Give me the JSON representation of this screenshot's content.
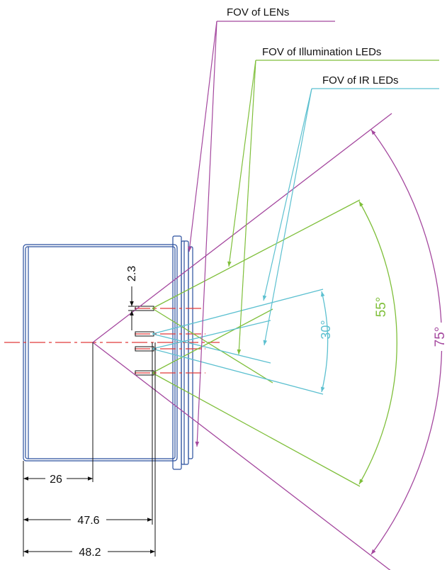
{
  "callouts": {
    "lens": "FOV of LENs",
    "illumination": "FOV of Illumination LEDs",
    "ir": "FOV of IR LEDs"
  },
  "dimensions": {
    "led_pitch": "2.3",
    "lens_depth": "26",
    "led_depth": "47.6",
    "overall_depth": "48.2"
  },
  "angles": {
    "ir_fov": "30°",
    "illumination_fov": "55°",
    "lens_fov": "75°"
  },
  "colors": {
    "lens": "#a4479e",
    "illumination": "#7fbf3a",
    "ir": "#5cc0d0",
    "housing": "#2a4f9e",
    "centerline": "#e03a3a",
    "dimension": "#111111"
  }
}
